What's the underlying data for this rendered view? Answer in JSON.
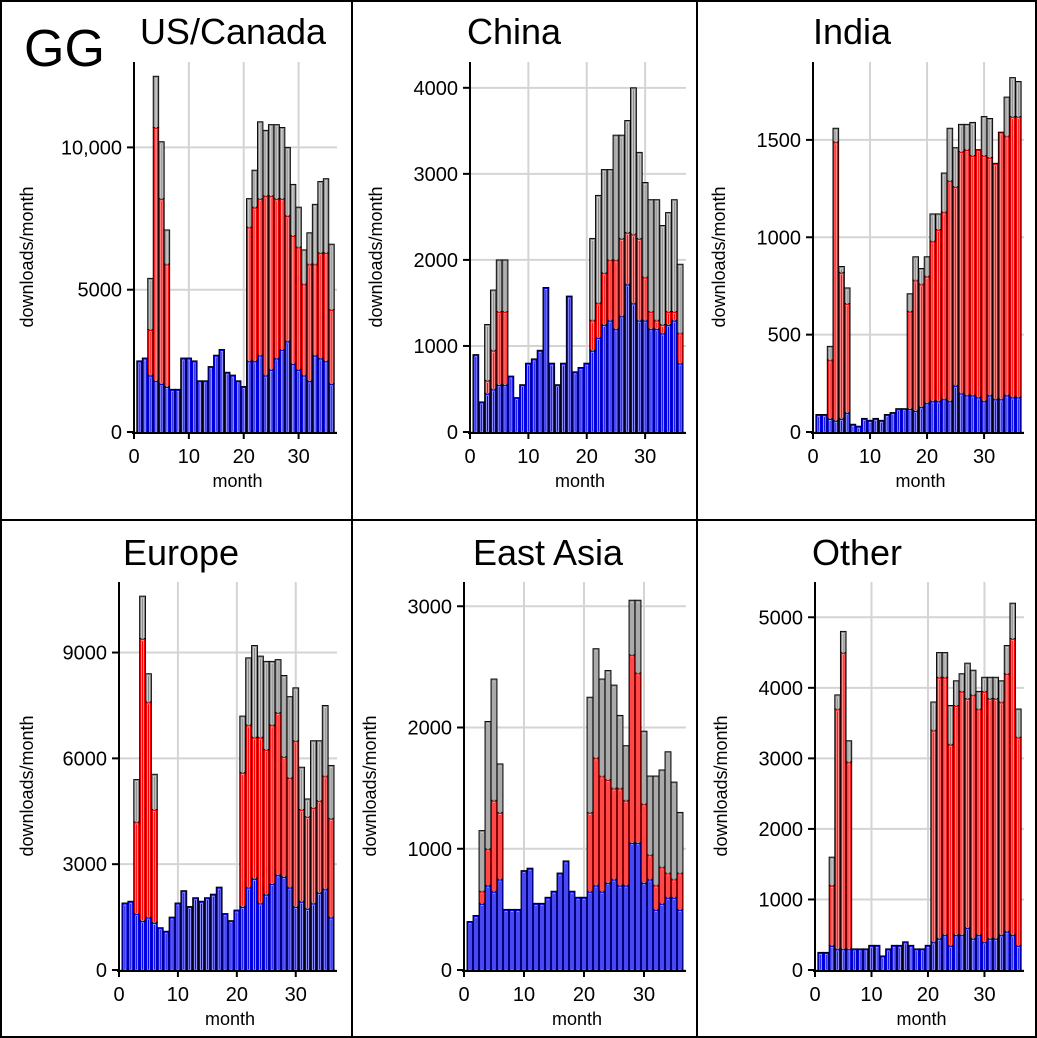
{
  "figure": {
    "logo_text": "GG",
    "logo_color": "#0a14b4",
    "grid_color": "#d4d4d4",
    "border_color": "#000000"
  },
  "chart_data": [
    {
      "type": "bar",
      "stacked": true,
      "title": "US/Canada",
      "xlabel": "month",
      "ylabel": "downloads/month",
      "xlim": [
        0,
        37
      ],
      "ylim": [
        0,
        13000
      ],
      "xticks": [
        0,
        10,
        20,
        30
      ],
      "xtick_labels": [
        "0",
        "10",
        "20",
        "30"
      ],
      "yticks": [
        0,
        5000,
        10000
      ],
      "ytick_labels": [
        "0",
        "5000",
        "10,000"
      ],
      "grid": true,
      "x": [
        1,
        2,
        3,
        4,
        5,
        6,
        7,
        8,
        9,
        10,
        11,
        12,
        13,
        14,
        15,
        16,
        17,
        18,
        19,
        20,
        21,
        22,
        23,
        24,
        25,
        26,
        27,
        28,
        29,
        30,
        31,
        32,
        33,
        34,
        35,
        36
      ],
      "series": [
        {
          "color": "#0000ee",
          "values": [
            2500,
            2600,
            2000,
            1800,
            1700,
            1600,
            1500,
            1500,
            2600,
            2600,
            2500,
            1800,
            1800,
            2300,
            2700,
            2900,
            2100,
            2000,
            1800,
            1600,
            2500,
            2500,
            2700,
            2000,
            2200,
            2600,
            2900,
            3200,
            2400,
            2200,
            2000,
            1800,
            2700,
            2600,
            2500,
            1700
          ]
        },
        {
          "color": "#ff0000",
          "values": [
            0,
            0,
            1600,
            8900,
            6500,
            4300,
            0,
            0,
            0,
            0,
            0,
            0,
            0,
            0,
            0,
            0,
            0,
            0,
            0,
            0,
            4700,
            5400,
            5500,
            6300,
            6100,
            5600,
            5300,
            4400,
            4500,
            4300,
            3200,
            4100,
            3200,
            3700,
            3800,
            2600
          ]
        },
        {
          "color": "#888888",
          "values": [
            0,
            0,
            1800,
            1800,
            2000,
            1200,
            0,
            0,
            0,
            0,
            0,
            0,
            0,
            0,
            0,
            0,
            0,
            0,
            0,
            0,
            1000,
            1300,
            2700,
            2300,
            2500,
            2600,
            2500,
            2400,
            1800,
            1400,
            1200,
            1100,
            2100,
            2500,
            2600,
            2300
          ]
        }
      ]
    },
    {
      "type": "bar",
      "stacked": true,
      "title": "China",
      "xlabel": "month",
      "ylabel": "downloads/month",
      "xlim": [
        0,
        37
      ],
      "ylim": [
        0,
        4300
      ],
      "xticks": [
        0,
        10,
        20,
        30
      ],
      "xtick_labels": [
        "0",
        "10",
        "20",
        "30"
      ],
      "yticks": [
        0,
        1000,
        2000,
        3000,
        4000
      ],
      "ytick_labels": [
        "0",
        "1000",
        "2000",
        "3000",
        "4000"
      ],
      "grid": true,
      "x": [
        1,
        2,
        3,
        4,
        5,
        6,
        7,
        8,
        9,
        10,
        11,
        12,
        13,
        14,
        15,
        16,
        17,
        18,
        19,
        20,
        21,
        22,
        23,
        24,
        25,
        26,
        27,
        28,
        29,
        30,
        31,
        32,
        33,
        34,
        35,
        36
      ],
      "series": [
        {
          "color": "#0000ee",
          "values": [
            900,
            350,
            450,
            500,
            550,
            550,
            650,
            400,
            550,
            800,
            850,
            950,
            1680,
            800,
            550,
            800,
            1580,
            700,
            750,
            800,
            950,
            1100,
            1250,
            1300,
            1200,
            1350,
            1720,
            1500,
            1300,
            1300,
            1200,
            1200,
            1150,
            1250,
            1300,
            800
          ]
        },
        {
          "color": "#ff0000",
          "values": [
            0,
            0,
            150,
            450,
            850,
            850,
            0,
            0,
            0,
            0,
            0,
            0,
            0,
            0,
            0,
            0,
            0,
            0,
            0,
            0,
            350,
            400,
            600,
            700,
            800,
            900,
            600,
            800,
            950,
            500,
            200,
            100,
            100,
            150,
            100,
            350
          ]
        },
        {
          "color": "#888888",
          "values": [
            0,
            0,
            650,
            700,
            600,
            600,
            0,
            0,
            0,
            0,
            0,
            0,
            0,
            0,
            0,
            0,
            0,
            0,
            0,
            0,
            950,
            1250,
            1200,
            1050,
            1450,
            1200,
            1300,
            1700,
            1000,
            1100,
            1300,
            1400,
            1150,
            1150,
            1300,
            800
          ]
        }
      ]
    },
    {
      "type": "bar",
      "stacked": true,
      "title": "India",
      "xlabel": "month",
      "ylabel": "downloads/month",
      "xlim": [
        0,
        37
      ],
      "ylim": [
        0,
        1900
      ],
      "xticks": [
        0,
        10,
        20,
        30
      ],
      "xtick_labels": [
        "0",
        "10",
        "20",
        "30"
      ],
      "yticks": [
        0,
        500,
        1000,
        1500
      ],
      "ytick_labels": [
        "0",
        "500",
        "1000",
        "1500"
      ],
      "grid": true,
      "x": [
        1,
        2,
        3,
        4,
        5,
        6,
        7,
        8,
        9,
        10,
        11,
        12,
        13,
        14,
        15,
        16,
        17,
        18,
        19,
        20,
        21,
        22,
        23,
        24,
        25,
        26,
        27,
        28,
        29,
        30,
        31,
        32,
        33,
        34,
        35,
        36
      ],
      "series": [
        {
          "color": "#0000ee",
          "values": [
            90,
            90,
            70,
            60,
            70,
            100,
            40,
            30,
            70,
            60,
            70,
            60,
            90,
            100,
            120,
            120,
            120,
            110,
            130,
            150,
            160,
            160,
            170,
            160,
            240,
            200,
            190,
            190,
            180,
            160,
            190,
            170,
            170,
            190,
            180,
            180
          ]
        },
        {
          "color": "#ff0000",
          "values": [
            0,
            0,
            300,
            1430,
            750,
            560,
            0,
            0,
            0,
            0,
            0,
            0,
            0,
            0,
            0,
            0,
            500,
            670,
            630,
            650,
            820,
            880,
            960,
            1130,
            1020,
            1240,
            1260,
            1230,
            1270,
            1260,
            1220,
            1210,
            1370,
            1330,
            1440,
            1440
          ]
        },
        {
          "color": "#888888",
          "values": [
            0,
            0,
            70,
            70,
            30,
            80,
            0,
            0,
            0,
            0,
            0,
            0,
            0,
            0,
            0,
            0,
            90,
            120,
            80,
            100,
            140,
            80,
            200,
            270,
            200,
            140,
            130,
            170,
            0,
            200,
            200,
            0,
            0,
            200,
            200,
            180
          ]
        }
      ]
    },
    {
      "type": "bar",
      "stacked": true,
      "title": "Europe",
      "xlabel": "month",
      "ylabel": "downloads/month",
      "xlim": [
        0,
        37
      ],
      "ylim": [
        0,
        11000
      ],
      "xticks": [
        0,
        10,
        20,
        30
      ],
      "xtick_labels": [
        "0",
        "10",
        "20",
        "30"
      ],
      "yticks": [
        0,
        3000,
        6000,
        9000
      ],
      "ytick_labels": [
        "0",
        "3000",
        "6000",
        "9000"
      ],
      "grid": true,
      "x": [
        1,
        2,
        3,
        4,
        5,
        6,
        7,
        8,
        9,
        10,
        11,
        12,
        13,
        14,
        15,
        16,
        17,
        18,
        19,
        20,
        21,
        22,
        23,
        24,
        25,
        26,
        27,
        28,
        29,
        30,
        31,
        32,
        33,
        34,
        35,
        36
      ],
      "series": [
        {
          "color": "#0000ee",
          "values": [
            1900,
            1950,
            1600,
            1400,
            1500,
            1350,
            1200,
            1100,
            1500,
            1900,
            2250,
            1800,
            2050,
            1950,
            2050,
            2150,
            2350,
            1600,
            1400,
            1700,
            1800,
            2350,
            2600,
            1900,
            2150,
            2450,
            2700,
            2650,
            2350,
            1800,
            1950,
            1750,
            1900,
            2200,
            2300,
            1500
          ]
        },
        {
          "color": "#ff0000",
          "values": [
            0,
            0,
            2600,
            8000,
            6100,
            3200,
            0,
            0,
            0,
            0,
            0,
            0,
            0,
            0,
            0,
            0,
            0,
            0,
            0,
            0,
            3800,
            4600,
            4000,
            4700,
            4100,
            4500,
            4600,
            3400,
            3100,
            4700,
            2600,
            2600,
            2700,
            2600,
            3200,
            2800
          ]
        },
        {
          "color": "#888888",
          "values": [
            0,
            0,
            1200,
            1200,
            800,
            1000,
            0,
            0,
            0,
            0,
            0,
            0,
            0,
            0,
            0,
            0,
            0,
            0,
            0,
            0,
            1600,
            1900,
            2600,
            2300,
            2500,
            1800,
            1500,
            2300,
            2300,
            1500,
            1200,
            500,
            1900,
            1700,
            2000,
            1500
          ]
        }
      ]
    },
    {
      "type": "bar",
      "stacked": true,
      "title": "East Asia",
      "xlabel": "month",
      "ylabel": "downloads/month",
      "xlim": [
        0,
        37
      ],
      "ylim": [
        0,
        3200
      ],
      "xticks": [
        0,
        10,
        20,
        30
      ],
      "xtick_labels": [
        "0",
        "10",
        "20",
        "30"
      ],
      "yticks": [
        0,
        1000,
        2000,
        3000
      ],
      "ytick_labels": [
        "0",
        "1000",
        "2000",
        "3000"
      ],
      "grid": true,
      "x": [
        1,
        2,
        3,
        4,
        5,
        6,
        7,
        8,
        9,
        10,
        11,
        12,
        13,
        14,
        15,
        16,
        17,
        18,
        19,
        20,
        21,
        22,
        23,
        24,
        25,
        26,
        27,
        28,
        29,
        30,
        31,
        32,
        33,
        34,
        35,
        36
      ],
      "series": [
        {
          "color": "#0000ee",
          "values": [
            400,
            450,
            550,
            700,
            650,
            750,
            500,
            500,
            500,
            820,
            840,
            550,
            550,
            600,
            650,
            800,
            900,
            650,
            600,
            600,
            650,
            700,
            650,
            720,
            750,
            700,
            700,
            1050,
            1050,
            720,
            750,
            500,
            550,
            600,
            600,
            500
          ]
        },
        {
          "color": "#ff0000",
          "values": [
            0,
            0,
            100,
            300,
            750,
            550,
            0,
            0,
            0,
            0,
            0,
            0,
            0,
            0,
            0,
            0,
            0,
            0,
            0,
            0,
            650,
            1050,
            950,
            850,
            750,
            800,
            700,
            1550,
            1400,
            650,
            200,
            200,
            300,
            200,
            150,
            300
          ]
        },
        {
          "color": "#888888",
          "values": [
            0,
            0,
            500,
            1050,
            1000,
            400,
            0,
            0,
            0,
            0,
            0,
            0,
            0,
            0,
            0,
            0,
            0,
            0,
            0,
            0,
            950,
            900,
            800,
            900,
            850,
            600,
            450,
            450,
            600,
            600,
            650,
            900,
            800,
            1000,
            800,
            500
          ]
        }
      ]
    },
    {
      "type": "bar",
      "stacked": true,
      "title": "Other",
      "xlabel": "month",
      "ylabel": "downloads/month",
      "xlim": [
        0,
        37
      ],
      "ylim": [
        0,
        5500
      ],
      "xticks": [
        0,
        10,
        20,
        30
      ],
      "xtick_labels": [
        "0",
        "10",
        "20",
        "30"
      ],
      "yticks": [
        0,
        1000,
        2000,
        3000,
        4000,
        5000
      ],
      "ytick_labels": [
        "0",
        "1000",
        "2000",
        "3000",
        "4000",
        "5000"
      ],
      "grid": true,
      "x": [
        1,
        2,
        3,
        4,
        5,
        6,
        7,
        8,
        9,
        10,
        11,
        12,
        13,
        14,
        15,
        16,
        17,
        18,
        19,
        20,
        21,
        22,
        23,
        24,
        25,
        26,
        27,
        28,
        29,
        30,
        31,
        32,
        33,
        34,
        35,
        36
      ],
      "series": [
        {
          "color": "#0000ee",
          "values": [
            250,
            250,
            350,
            300,
            300,
            300,
            300,
            300,
            300,
            350,
            350,
            200,
            300,
            350,
            350,
            400,
            350,
            300,
            300,
            350,
            400,
            450,
            500,
            350,
            500,
            500,
            600,
            450,
            500,
            400,
            450,
            450,
            500,
            550,
            500,
            350
          ]
        },
        {
          "color": "#ff0000",
          "values": [
            0,
            0,
            850,
            3400,
            4200,
            2650,
            0,
            0,
            0,
            0,
            0,
            0,
            0,
            0,
            0,
            0,
            0,
            0,
            0,
            0,
            3000,
            3700,
            3650,
            2850,
            3250,
            3450,
            3250,
            3450,
            3200,
            3550,
            3400,
            3400,
            3300,
            3650,
            4200,
            2950
          ]
        },
        {
          "color": "#888888",
          "values": [
            0,
            0,
            400,
            200,
            300,
            300,
            0,
            0,
            0,
            0,
            0,
            0,
            0,
            0,
            0,
            0,
            0,
            0,
            0,
            0,
            400,
            350,
            350,
            550,
            350,
            250,
            500,
            350,
            250,
            200,
            300,
            300,
            300,
            400,
            500,
            400
          ]
        }
      ]
    }
  ]
}
